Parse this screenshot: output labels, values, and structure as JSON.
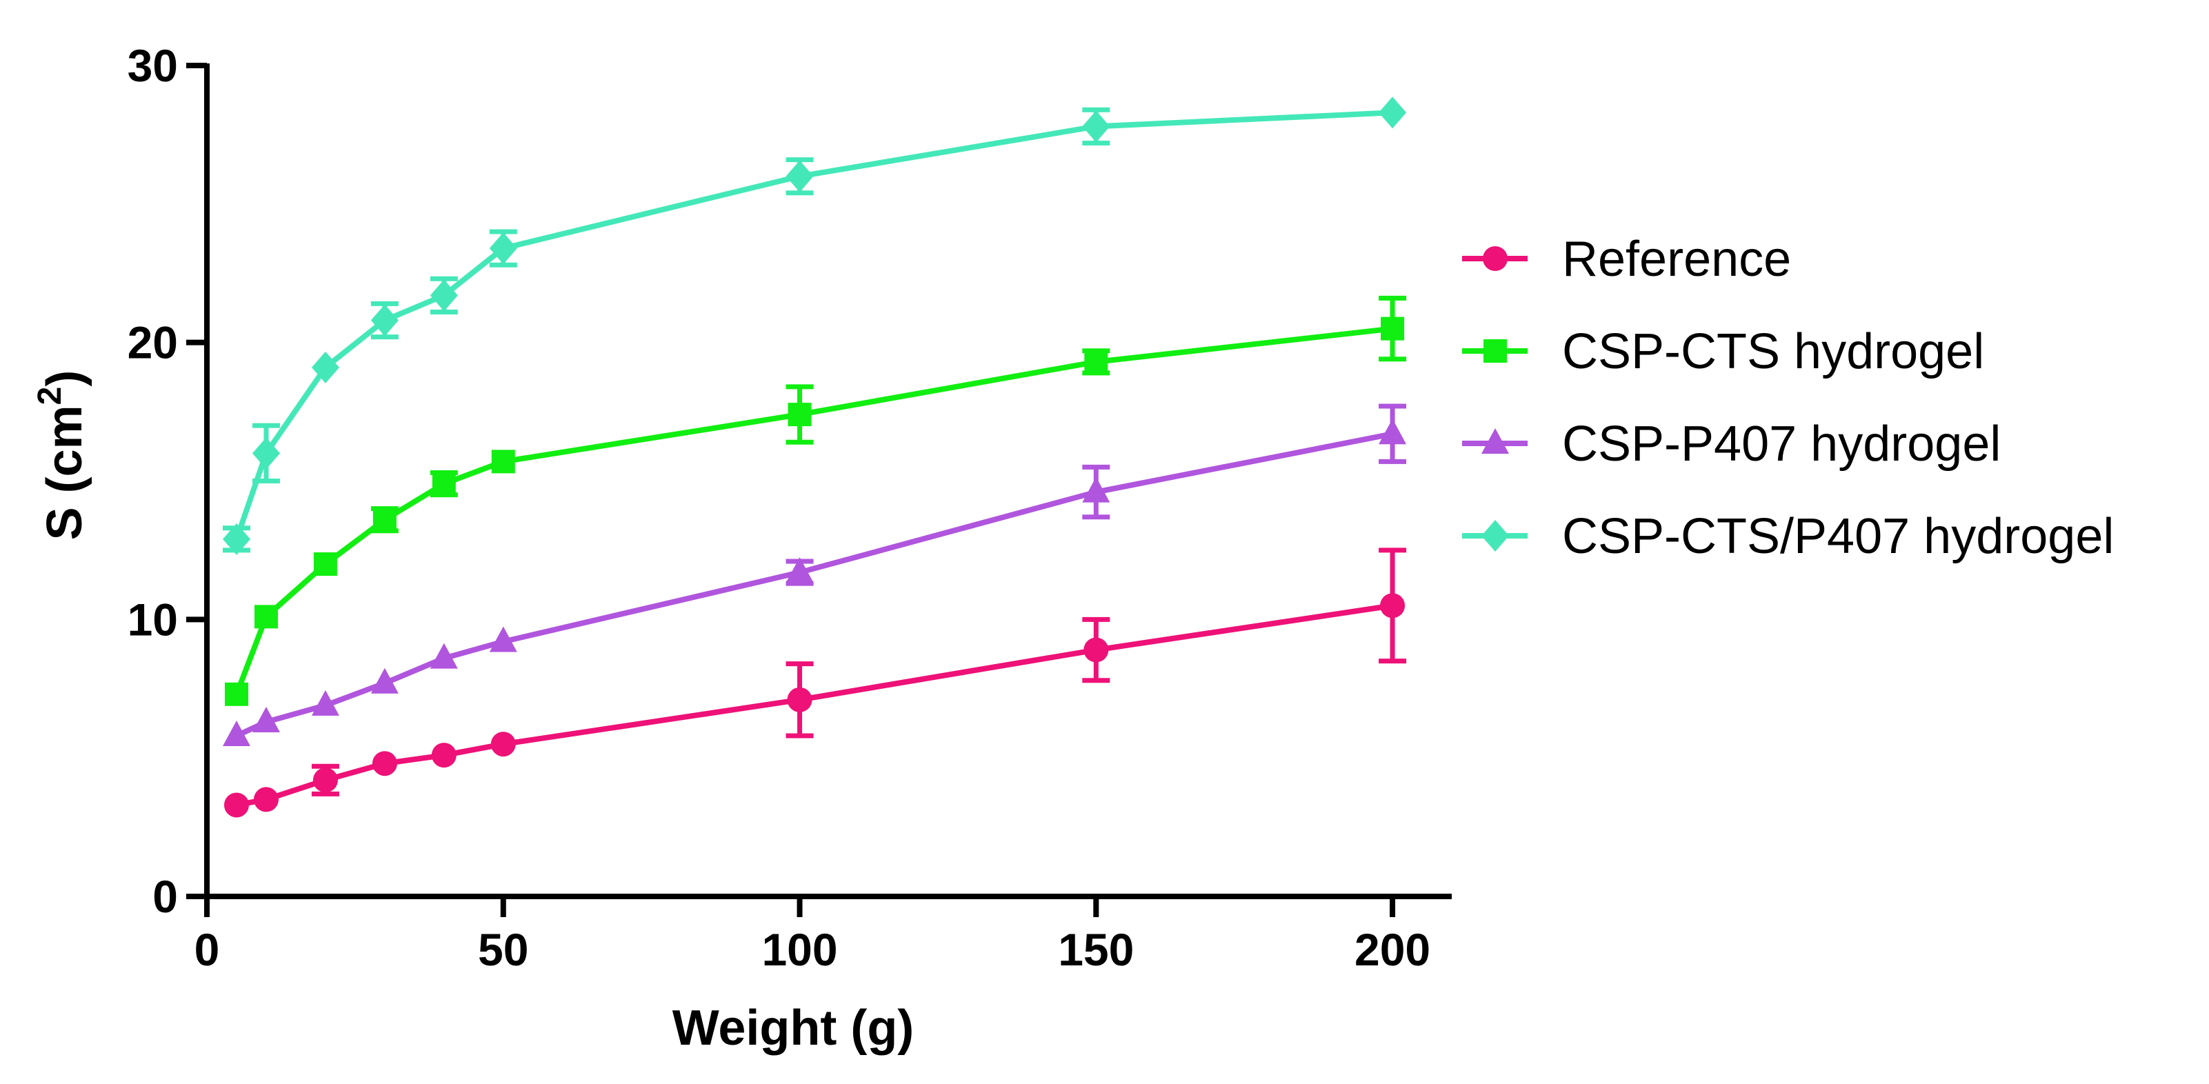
{
  "chart_data": {
    "type": "line",
    "title": "",
    "xlabel": "Weight (g)",
    "ylabel": {
      "main": "S (cm",
      "superscript": "2",
      "close": ")"
    },
    "xlim": [
      0,
      210
    ],
    "ylim": [
      0,
      30
    ],
    "x_ticks": [
      0,
      50,
      100,
      150,
      200
    ],
    "y_ticks": [
      0,
      10,
      20,
      30
    ],
    "x_tick_labels": [
      "0",
      "50",
      "100",
      "150",
      "200"
    ],
    "y_tick_labels": [
      "0",
      "10",
      "20",
      "30"
    ],
    "grid": false,
    "legend_position": "right",
    "x": [
      5,
      10,
      20,
      30,
      40,
      50,
      100,
      150,
      200
    ],
    "series": [
      {
        "name": "Reference",
        "color": "#ee1177",
        "marker": "circle",
        "values": [
          3.3,
          3.5,
          4.2,
          4.8,
          5.1,
          5.5,
          7.1,
          8.9,
          10.5
        ],
        "errors": [
          0.2,
          0.2,
          0.5,
          0.2,
          0.2,
          0.2,
          1.3,
          1.1,
          2.0
        ]
      },
      {
        "name": "CSP-CTS hydrogel",
        "color": "#11ee11",
        "marker": "square",
        "values": [
          7.3,
          10.1,
          12.0,
          13.6,
          14.9,
          15.7,
          17.4,
          19.3,
          20.5
        ],
        "errors": [
          0.2,
          0.2,
          0.2,
          0.4,
          0.4,
          0.2,
          1.0,
          0.4,
          1.1
        ]
      },
      {
        "name": "CSP-P407 hydrogel",
        "color": "#b055dd",
        "marker": "triangle",
        "values": [
          5.8,
          6.3,
          6.9,
          7.7,
          8.6,
          9.2,
          11.7,
          14.6,
          16.7
        ],
        "errors": [
          0.2,
          0.2,
          0.2,
          0.2,
          0.2,
          0.2,
          0.4,
          0.9,
          1.0
        ]
      },
      {
        "name": "CSP-CTS/P407 hydrogel",
        "color": "#44e8b8",
        "marker": "diamond",
        "values": [
          12.9,
          16.0,
          19.1,
          20.8,
          21.7,
          23.4,
          26.0,
          27.8,
          28.3
        ],
        "errors": [
          0.4,
          1.0,
          0.2,
          0.6,
          0.6,
          0.6,
          0.6,
          0.6,
          0.2
        ]
      }
    ]
  }
}
